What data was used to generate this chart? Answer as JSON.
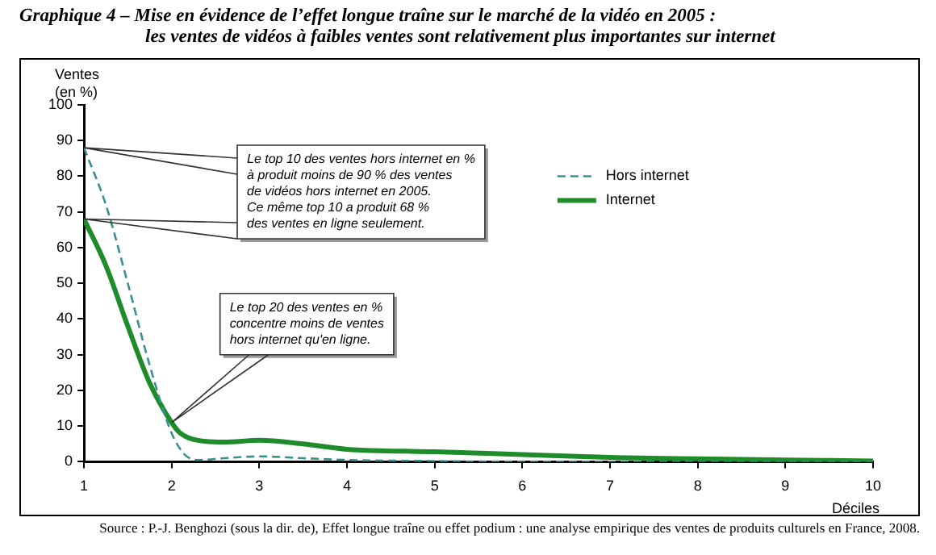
{
  "chart_data": {
    "type": "line",
    "title": "Graphique 4 – Mise en évidence de l’effet longue traîne sur le marché de la vidéo en 2005 :",
    "subtitle": "les ventes de vidéos à faibles ventes sont relativement plus importantes sur internet",
    "xlabel": "Déciles",
    "ylabel": "Ventes\n(en %)",
    "series": [
      {
        "name": "Hors internet",
        "color": "#3a9090",
        "line_style": "dashed",
        "x": [
          1,
          1.25,
          1.5,
          1.75,
          2,
          2.15,
          2.3,
          2.6,
          3,
          3.5,
          4,
          5,
          6,
          7,
          8,
          9,
          10
        ],
        "values": [
          88,
          72,
          50,
          27,
          8,
          2,
          0.5,
          1,
          1.5,
          1,
          0.5,
          0.2,
          0,
          0,
          0,
          0,
          0
        ]
      },
      {
        "name": "Internet",
        "color": "#1e8c2a",
        "line_style": "solid",
        "x": [
          1,
          1.25,
          1.5,
          1.75,
          2,
          2.1,
          2.3,
          2.6,
          3,
          3.5,
          4,
          5,
          6,
          7,
          8,
          9,
          10
        ],
        "values": [
          68,
          55,
          38,
          22,
          11,
          8,
          6,
          5.5,
          6,
          5,
          3.5,
          2.8,
          2,
          1.2,
          0.8,
          0.5,
          0.2
        ]
      }
    ],
    "xlim": [
      1,
      10
    ],
    "xticks": [
      1,
      2,
      3,
      4,
      5,
      6,
      7,
      8,
      9,
      10
    ],
    "ylim": [
      0,
      100
    ],
    "yticks": [
      0,
      10,
      20,
      30,
      40,
      50,
      60,
      70,
      80,
      90,
      100
    ],
    "grid": false,
    "legend": "top right",
    "marker": "none",
    "annotations": [
      "Le top 10 des ventes hors internet en %\nà produit moins de 90 % des ventes\nde vidéos hors internet en 2005.\nCe même top 10 a produit 68 %\ndes ventes en ligne seulement.",
      "Le top 20 des ventes en %\nconcentre moins de ventes\nhors internet qu'en ligne.",
      "Source : P.-J. Benghozi (sous la dir. de), Effet longue traîne ou effet podium : une analyse empirique des ventes de produits culturels en France, 2008."
    ]
  }
}
